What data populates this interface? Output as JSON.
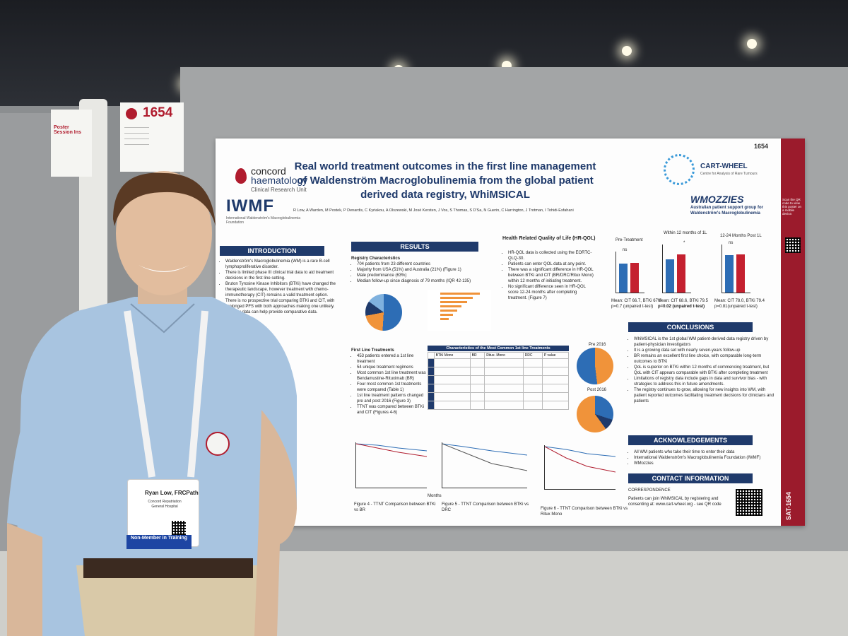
{
  "booth_number": "1654",
  "session_sign": {
    "title": "Poster Session Ins"
  },
  "poster": {
    "number": "1654",
    "title": "Real world treatment outcomes in the first line management of Waldenström Macroglobulinemia from the global patient derived data registry, WhiMSICAL",
    "authors": "R Low, A Warden, M Postek, P Denardis, C Kyriakou, A Olszewski, M José Kersten, J Vos, S Thomas, S D'Sa, N Guerin, C Harrington, J Trotman, I Tohidi-Esfahani",
    "logos": {
      "concord_line1": "concord",
      "concord_line2": "haematology",
      "concord_line3": "Clinical Research Unit",
      "iwmf": "IWMF",
      "iwmf_sub": "International Waldenström's Macroglobulinemia Foundation",
      "cart": "CART-WHEEL",
      "cart_sub": "Centre for Analysis of Rare Tumours",
      "wmozzies": "WMOZZIES",
      "wmozzies_sub": "Australian patient support group for Waldenström's Macroglobulinemia"
    },
    "sections": {
      "introduction": "INTRODUCTION",
      "results": "RESULTS",
      "conclusions": "CONCLUSIONS",
      "acknowledgements": "ACKNOWLEDGEMENTS",
      "contact": "CONTACT INFORMATION",
      "hrqol": "Health Related Quality of Life (HR-QOL)"
    },
    "intro_bullets": [
      "Waldenström's Macroglobulinemia (WM) is a rare B-cell lymphoproliferative disorder.",
      "There is limited phase III clinical trial data to aid treatment decisions in the first line setting.",
      "Bruton Tyrosine Kinase Inhibitors (BTKi) have changed the therapeutic landscape, however treatment with chemo-immunotherapy (CIT) remains a valid treatment option.",
      "There is no prospective trial comparing BTKi and CIT, with prolonged PFS with both approaches making one unlikely. Registry data can help provide comparative data."
    ],
    "registry_heading": "Registry Characteristics",
    "registry_bullets": [
      "704 patients from 23 different countries",
      "Majority from USA (51%) and Australia (21%) (Figure 1)",
      "Male predominance (63%)",
      "Median follow-up since diagnosis of 79 months (IQR 42-135)"
    ],
    "first_line_heading": "First Line Treatments",
    "first_line_bullets": [
      "453 patients entered a 1st line treatment",
      "54 unique treatment regimens",
      "Most common 1st line treatment was Bendamustine-Rituximab (BR)",
      "Four most common 1st treatments were compared (Table 1)",
      "1st line treatment patterns changed pre and post 2016 (Figure 3)",
      "TTNT was compared between BTKi and CIT (Figures 4-6)"
    ],
    "table_title": "Characteristics of the Most Common 1st line Treatments",
    "table_headers": [
      "",
      "BTKi Mono",
      "BR",
      "Ritux. Mono",
      "DRC",
      "P value"
    ],
    "hrqol_bullets": [
      "HR-QOL data is collected using the EORTC-QLQ-30.",
      "Patients can enter QOL data at any point.",
      "There was a significant difference in HR-QOL between BTKi and CIT (BR/DRC/Ritux Mono) within 12 months of initiating treatment.",
      "No significant difference seen in HR-QOL score 12-24 months after completing treatment. (Figure 7)"
    ],
    "bar_panels": [
      {
        "title": "Pre-Treatment",
        "stat": "Mean: CIT 66.7, BTKi 67.9",
        "p": "p=0.7 (unpaired t-test)",
        "sig": "ns"
      },
      {
        "title": "Within 12 months of 1L",
        "stat": "Mean: CIT 68.6, BTKi 79.5",
        "p": "p=0.02 (unpaired t-test)",
        "sig": "*"
      },
      {
        "title": "12-24 Months Post 1L",
        "stat": "Mean: CIT 78.0, BTKi 79.4",
        "p": "p=0.81(unpaired t-test)",
        "sig": "ns"
      }
    ],
    "conclusion_bullets": [
      "WhiMSICAL is the 1st global WM patient-derived data registry driven by patient-physician investigators",
      "It is a growing data set with nearly seven-years follow-up",
      "BR remains an excellent first line choice, with comparable long-term outcomes to BTKi",
      "QoL is superior on BTKi within 12 months of commencing treatment, but QoL with CIT appears comparable with BTKi after completing treatment",
      "Limitations of registry data include gaps in data and survivor bias - with strategies to address this in future amendments.",
      "The registry continues to grow, allowing for new insights into WM, with patient reported outcomes facilitating treatment decisions for clinicians and patients"
    ],
    "ack_bullets": [
      "All WM patients who take their time to enter their data",
      "International Waldenström's Macroglobulinemia Foundation (IWMF)",
      "WMozzies"
    ],
    "contact_line": "CORRESPONDENCE",
    "contact_cta": "Patients can join WhiMSICAL by registering and consenting at: www.cart-wheel.org - see QR code",
    "km_captions": [
      "Figure 4 - TTNT Comparison between BTKi vs BR",
      "Figure 5 - TTNT Comparison between BTKi vs DRC",
      "Figure 6 - TTNT Comparison between BTKi vs Ritux Mono"
    ],
    "km_xlabel": "Months",
    "pie_labels": [
      "Pre 2016",
      "Post 2016"
    ],
    "sidebar_code": "SAT-1654",
    "sidebar_qr_text": "Scan the QR code to view this poster on a mobile device."
  },
  "badge": {
    "name": "Ryan Low, FRCPath",
    "org": "Concord Repatriation General Hospital",
    "status": "Non-Member in Training"
  }
}
